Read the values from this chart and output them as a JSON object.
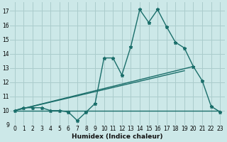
{
  "xlabel": "Humidex (Indice chaleur)",
  "background_color": "#cce8e8",
  "grid_color": "#aacccc",
  "line_color": "#1a6e6a",
  "xlim": [
    -0.5,
    23.5
  ],
  "ylim": [
    9,
    17.6
  ],
  "xticks": [
    0,
    1,
    2,
    3,
    4,
    5,
    6,
    7,
    8,
    9,
    10,
    11,
    12,
    13,
    14,
    15,
    16,
    17,
    18,
    19,
    20,
    21,
    22,
    23
  ],
  "yticks": [
    9,
    10,
    11,
    12,
    13,
    14,
    15,
    16,
    17
  ],
  "series1_x": [
    0,
    1,
    2,
    3,
    4,
    5,
    6,
    7,
    8,
    9,
    10,
    11,
    12,
    13,
    14,
    15,
    16,
    17,
    18,
    19,
    20,
    21,
    22,
    23
  ],
  "series1_y": [
    10.0,
    10.2,
    10.2,
    10.2,
    10.0,
    10.0,
    9.9,
    9.3,
    9.9,
    10.5,
    13.7,
    13.7,
    12.5,
    14.5,
    17.1,
    16.2,
    17.1,
    15.9,
    14.8,
    14.4,
    13.1,
    12.1,
    10.3,
    9.9
  ],
  "series2_x": [
    0,
    20
  ],
  "series2_y": [
    10.0,
    13.1
  ],
  "series3_x": [
    0,
    23
  ],
  "series3_y": [
    10.0,
    10.0
  ],
  "series4_x": [
    0,
    19
  ],
  "series4_y": [
    10.0,
    12.8
  ],
  "marker_size": 3.5,
  "line_width": 1.0
}
